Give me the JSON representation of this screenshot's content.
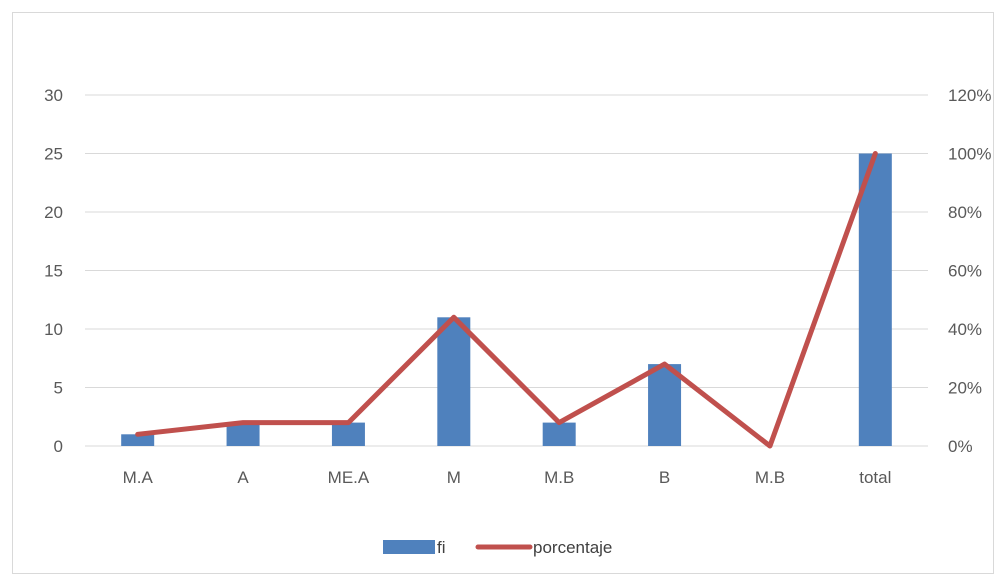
{
  "chart_data": {
    "type": "bar",
    "categories": [
      "M.A",
      "A",
      "ME.A",
      "M",
      "M.B",
      "B",
      "M.B",
      "total"
    ],
    "series": [
      {
        "name": "fi",
        "type": "bar",
        "axis": "left",
        "color": "#4f81bd",
        "values": [
          1,
          2,
          2,
          11,
          2,
          7,
          0,
          25
        ]
      },
      {
        "name": "porcentaje",
        "type": "line",
        "axis": "right",
        "color": "#c0504d",
        "values": [
          0.04,
          0.08,
          0.08,
          0.44,
          0.08,
          0.28,
          0,
          1.0
        ]
      }
    ],
    "y_left": {
      "min": 0,
      "max": 30,
      "ticks": [
        "0",
        "5",
        "10",
        "15",
        "20",
        "25",
        "30"
      ]
    },
    "y_right": {
      "min": 0,
      "max": 1.2,
      "ticks": [
        "0%",
        "20%",
        "40%",
        "60%",
        "80%",
        "100%",
        "120%"
      ]
    },
    "title": "",
    "xlabel": "",
    "ylabel": "",
    "grid": true,
    "legend": "bottom"
  }
}
